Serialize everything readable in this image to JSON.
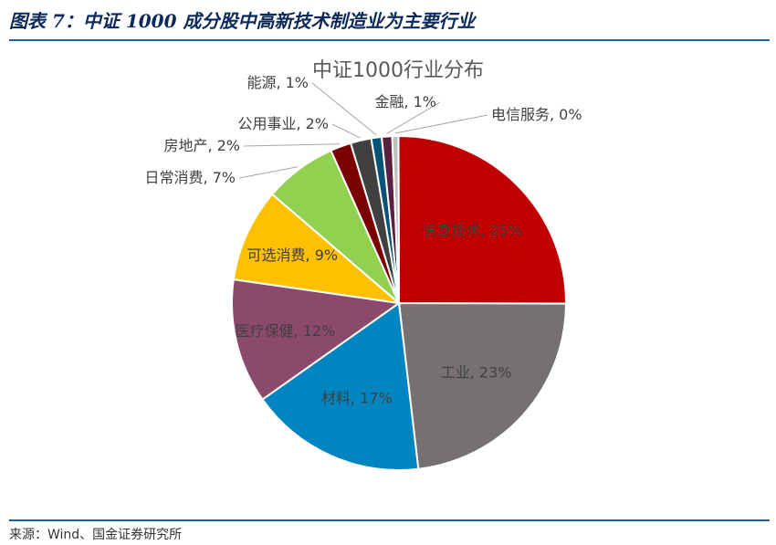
{
  "header": {
    "figure_title": "图表 7：中证 1000 成分股中高新技术制造业为主要行业"
  },
  "footer": {
    "source": "来源：Wind、国金证券研究所"
  },
  "colors": {
    "title_text": "#0b2a5b",
    "rule": "#1f5fa8"
  },
  "chart_data": {
    "type": "pie",
    "title": "中证1000行业分布",
    "slices": [
      {
        "label": "信息技术",
        "value": 25,
        "value_text": "25%",
        "color": "#c00000"
      },
      {
        "label": "工业",
        "value": 23,
        "value_text": "23%",
        "color": "#767171"
      },
      {
        "label": "材料",
        "value": 17,
        "value_text": "17%",
        "color": "#0085c0"
      },
      {
        "label": "医疗保健",
        "value": 12,
        "value_text": "12%",
        "color": "#8b4a6c"
      },
      {
        "label": "可选消费",
        "value": 9,
        "value_text": "9%",
        "color": "#ffc000"
      },
      {
        "label": "日常消费",
        "value": 7,
        "value_text": "7%",
        "color": "#92d050"
      },
      {
        "label": "房地产",
        "value": 2,
        "value_text": "2%",
        "color": "#7b0000"
      },
      {
        "label": "公用事业",
        "value": 2,
        "value_text": "2%",
        "color": "#404040"
      },
      {
        "label": "能源",
        "value": 1,
        "value_text": "1%",
        "color": "#075277"
      },
      {
        "label": "金融",
        "value": 1,
        "value_text": "1%",
        "color": "#5a2040"
      },
      {
        "label": "电信服务",
        "value": 0,
        "value_text": "0%",
        "color": "#c0c0c0"
      }
    ]
  }
}
